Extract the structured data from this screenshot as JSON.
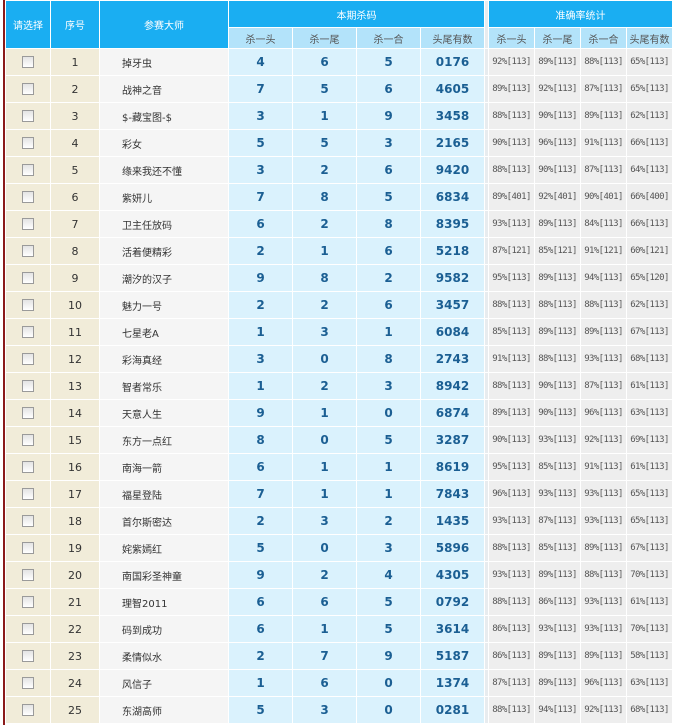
{
  "header": {
    "select": "请选择",
    "index": "序号",
    "master": "参赛大师",
    "kill_group": "本期杀码",
    "accuracy_group": "准确率统计",
    "sub": [
      "杀一头",
      "杀一尾",
      "杀一合",
      "头尾有数"
    ],
    "acc_sub": [
      "杀一头",
      "杀一尾",
      "杀一合",
      "头尾有数"
    ]
  },
  "rows": [
    {
      "idx": "1",
      "name": "掉牙虫",
      "k": [
        "4",
        "6",
        "5",
        "0176"
      ],
      "a": [
        "92%[113]",
        "89%[113]",
        "88%[113]",
        "65%[113]"
      ]
    },
    {
      "idx": "2",
      "name": "战神之音",
      "k": [
        "7",
        "5",
        "6",
        "4605"
      ],
      "a": [
        "89%[113]",
        "92%[113]",
        "87%[113]",
        "65%[113]"
      ]
    },
    {
      "idx": "3",
      "name": "$-藏宝图-$",
      "k": [
        "3",
        "1",
        "9",
        "3458"
      ],
      "a": [
        "88%[113]",
        "90%[113]",
        "89%[113]",
        "62%[113]"
      ]
    },
    {
      "idx": "4",
      "name": "彩女",
      "k": [
        "5",
        "5",
        "3",
        "2165"
      ],
      "a": [
        "90%[113]",
        "96%[113]",
        "91%[113]",
        "66%[113]"
      ]
    },
    {
      "idx": "5",
      "name": "缘来我还不懂",
      "k": [
        "3",
        "2",
        "6",
        "9420"
      ],
      "a": [
        "88%[113]",
        "90%[113]",
        "87%[113]",
        "64%[113]"
      ]
    },
    {
      "idx": "6",
      "name": "紫妍儿",
      "k": [
        "7",
        "8",
        "5",
        "6834"
      ],
      "a": [
        "89%[401]",
        "92%[401]",
        "90%[401]",
        "66%[400]"
      ]
    },
    {
      "idx": "7",
      "name": "卫主任放码",
      "k": [
        "6",
        "2",
        "8",
        "8395"
      ],
      "a": [
        "93%[113]",
        "89%[113]",
        "84%[113]",
        "66%[113]"
      ]
    },
    {
      "idx": "8",
      "name": "活着便精彩",
      "k": [
        "2",
        "1",
        "6",
        "5218"
      ],
      "a": [
        "87%[121]",
        "85%[121]",
        "91%[121]",
        "60%[121]"
      ]
    },
    {
      "idx": "9",
      "name": "潮汐的汉子",
      "k": [
        "9",
        "8",
        "2",
        "9582"
      ],
      "a": [
        "95%[113]",
        "89%[113]",
        "94%[113]",
        "65%[120]"
      ]
    },
    {
      "idx": "10",
      "name": "魅力一号",
      "k": [
        "2",
        "2",
        "6",
        "3457"
      ],
      "a": [
        "88%[113]",
        "88%[113]",
        "88%[113]",
        "62%[113]"
      ]
    },
    {
      "idx": "11",
      "name": "七星老A",
      "k": [
        "1",
        "3",
        "1",
        "6084"
      ],
      "a": [
        "85%[113]",
        "89%[113]",
        "89%[113]",
        "67%[113]"
      ]
    },
    {
      "idx": "12",
      "name": "彩海真经",
      "k": [
        "3",
        "0",
        "8",
        "2743"
      ],
      "a": [
        "91%[113]",
        "88%[113]",
        "93%[113]",
        "68%[113]"
      ]
    },
    {
      "idx": "13",
      "name": "智者常乐",
      "k": [
        "1",
        "2",
        "3",
        "8942"
      ],
      "a": [
        "88%[113]",
        "90%[113]",
        "87%[113]",
        "61%[113]"
      ]
    },
    {
      "idx": "14",
      "name": "天意人生",
      "k": [
        "9",
        "1",
        "0",
        "6874"
      ],
      "a": [
        "89%[113]",
        "90%[113]",
        "96%[113]",
        "63%[113]"
      ]
    },
    {
      "idx": "15",
      "name": "东方一点红",
      "k": [
        "8",
        "0",
        "5",
        "3287"
      ],
      "a": [
        "90%[113]",
        "93%[113]",
        "92%[113]",
        "69%[113]"
      ]
    },
    {
      "idx": "16",
      "name": "南海一箭",
      "k": [
        "6",
        "1",
        "1",
        "8619"
      ],
      "a": [
        "95%[113]",
        "85%[113]",
        "91%[113]",
        "61%[113]"
      ]
    },
    {
      "idx": "17",
      "name": "福星登陆",
      "k": [
        "7",
        "1",
        "1",
        "7843"
      ],
      "a": [
        "96%[113]",
        "93%[113]",
        "93%[113]",
        "65%[113]"
      ]
    },
    {
      "idx": "18",
      "name": "首尔斯密达",
      "k": [
        "2",
        "3",
        "2",
        "1435"
      ],
      "a": [
        "93%[113]",
        "87%[113]",
        "93%[113]",
        "65%[113]"
      ]
    },
    {
      "idx": "19",
      "name": "姹紫嫣红",
      "k": [
        "5",
        "0",
        "3",
        "5896"
      ],
      "a": [
        "88%[113]",
        "85%[113]",
        "89%[113]",
        "67%[113]"
      ]
    },
    {
      "idx": "20",
      "name": "南国彩圣神童",
      "k": [
        "9",
        "2",
        "4",
        "4305"
      ],
      "a": [
        "93%[113]",
        "89%[113]",
        "88%[113]",
        "70%[113]"
      ]
    },
    {
      "idx": "21",
      "name": "理智2011",
      "k": [
        "6",
        "6",
        "5",
        "0792"
      ],
      "a": [
        "88%[113]",
        "86%[113]",
        "93%[113]",
        "61%[113]"
      ]
    },
    {
      "idx": "22",
      "name": "码到成功",
      "k": [
        "6",
        "1",
        "5",
        "3614"
      ],
      "a": [
        "86%[113]",
        "93%[113]",
        "93%[113]",
        "70%[113]"
      ]
    },
    {
      "idx": "23",
      "name": "柔情似水",
      "k": [
        "2",
        "7",
        "9",
        "5187"
      ],
      "a": [
        "86%[113]",
        "89%[113]",
        "89%[113]",
        "58%[113]"
      ]
    },
    {
      "idx": "24",
      "name": "风信子",
      "k": [
        "1",
        "6",
        "0",
        "1374"
      ],
      "a": [
        "87%[113]",
        "89%[113]",
        "96%[113]",
        "63%[113]"
      ]
    },
    {
      "idx": "25",
      "name": "东湖高师",
      "k": [
        "5",
        "3",
        "0",
        "0281"
      ],
      "a": [
        "88%[113]",
        "94%[113]",
        "92%[113]",
        "68%[113]"
      ]
    }
  ]
}
